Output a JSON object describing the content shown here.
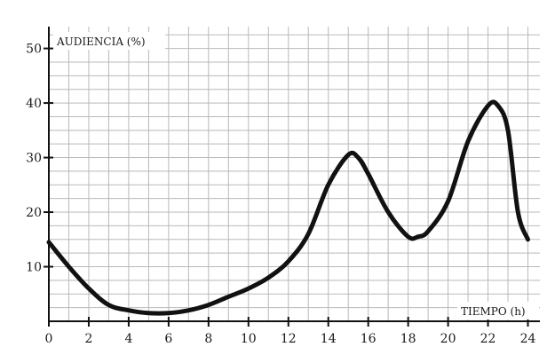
{
  "chart_data": {
    "type": "line",
    "title": "",
    "xlabel": "TIEMPO (h)",
    "ylabel": "AUDIENCIA (%)",
    "xlim": [
      0,
      24.6
    ],
    "ylim": [
      0,
      54
    ],
    "x_ticks": [
      0,
      2,
      4,
      6,
      8,
      10,
      12,
      14,
      16,
      18,
      20,
      22,
      24
    ],
    "x_tick_labels": [
      "0",
      "2",
      "4",
      "6",
      "8",
      "10",
      "12",
      "14",
      "16",
      "18",
      "20",
      "22",
      "24"
    ],
    "y_ticks": [
      10,
      20,
      30,
      40,
      50
    ],
    "y_tick_labels": [
      "10",
      "20",
      "30",
      "40",
      "50"
    ],
    "grid": true,
    "legend": "none",
    "line_color": "#111111",
    "grid_color": "#b9b9b9",
    "series": [
      {
        "x": [
          0,
          1,
          2,
          3,
          4,
          5,
          6,
          7,
          8,
          9,
          10,
          11,
          12,
          13,
          14,
          15,
          15.5,
          16,
          17,
          18,
          18.5,
          19,
          20,
          21,
          22,
          22.5,
          23,
          23.5,
          24
        ],
        "values": [
          14.5,
          10,
          6,
          3,
          2,
          1.5,
          1.5,
          2,
          3,
          4.5,
          6,
          8,
          11,
          16,
          25,
          30.5,
          30,
          27,
          20,
          15.5,
          15.5,
          16.5,
          22,
          33,
          39.5,
          39.5,
          35,
          20,
          15
        ]
      }
    ]
  }
}
